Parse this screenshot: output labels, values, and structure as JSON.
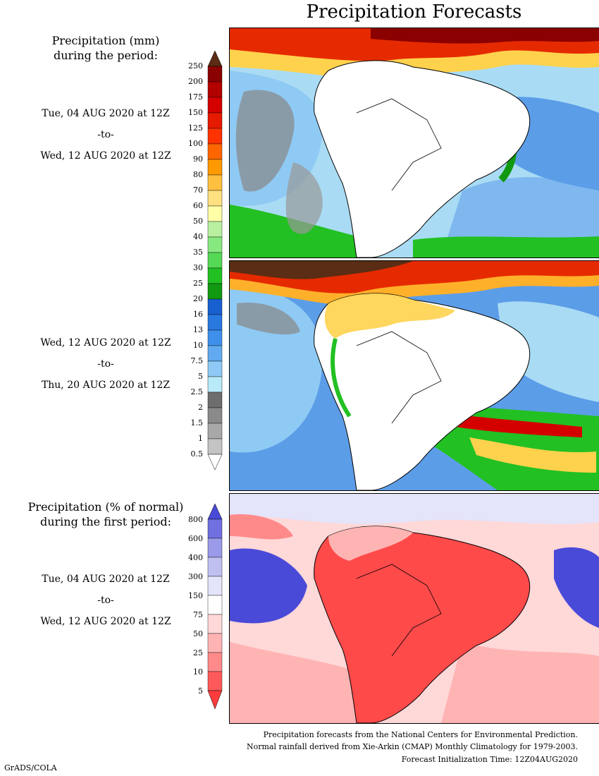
{
  "title": "Precipitation Forecasts",
  "panel1": {
    "heading_line1": "Precipitation (mm)",
    "heading_line2": "during the period:",
    "start": "Tue, 04 AUG 2020 at 12Z",
    "sep": "-to-",
    "end": "Wed, 12 AUG 2020 at 12Z"
  },
  "panel2": {
    "start": "Wed, 12 AUG 2020 at 12Z",
    "sep": "-to-",
    "end": "Thu, 20 AUG 2020 at 12Z"
  },
  "panel3": {
    "heading_line1": "Precipitation (% of normal)",
    "heading_line2": "during the first period:",
    "start": "Tue, 04 AUG 2020 at 12Z",
    "sep": "-to-",
    "end": "Wed, 12 AUG 2020 at 12Z"
  },
  "precip_scale": {
    "labels": [
      "250",
      "200",
      "175",
      "150",
      "125",
      "100",
      "90",
      "80",
      "70",
      "60",
      "50",
      "40",
      "35",
      "30",
      "25",
      "20",
      "16",
      "13",
      "10",
      "7.5",
      "5",
      "2.5",
      "2",
      "1.5",
      "1",
      "0.5"
    ],
    "colors": [
      "#5a2d14",
      "#8b0000",
      "#b30000",
      "#d40000",
      "#e61a00",
      "#ff3300",
      "#ff6600",
      "#ff9900",
      "#ffc040",
      "#ffe080",
      "#ffffa8",
      "#b8f0a0",
      "#88e880",
      "#55d855",
      "#22c022",
      "#119911",
      "#1860d0",
      "#2878e0",
      "#3e90ea",
      "#62aaf0",
      "#8ecaf5",
      "#b9eaf7",
      "#6e6e6e",
      "#8a8a8a",
      "#a8a8a8",
      "#c4c4c4"
    ]
  },
  "pct_scale": {
    "labels": [
      "800",
      "600",
      "400",
      "300",
      "150",
      "75",
      "50",
      "25",
      "10",
      "5"
    ],
    "colors": [
      "#4a4ad8",
      "#7070e0",
      "#9a9ae8",
      "#c0c0f0",
      "#e4e4fa",
      "#ffffff",
      "#ffd8d8",
      "#ffb4b4",
      "#ff8a8a",
      "#ff5a5a",
      "#ff3c3c"
    ]
  },
  "footer": {
    "line1": "Precipitation forecasts from the National Centers for Environmental Prediction.",
    "line2": "Normal rainfall derived from Xie-Arkin (CMAP) Monthly Climatology for 1979-2003.",
    "line3": "Forecast Initialization Time: 12Z04AUG2020"
  },
  "credit": "GrADS/COLA"
}
